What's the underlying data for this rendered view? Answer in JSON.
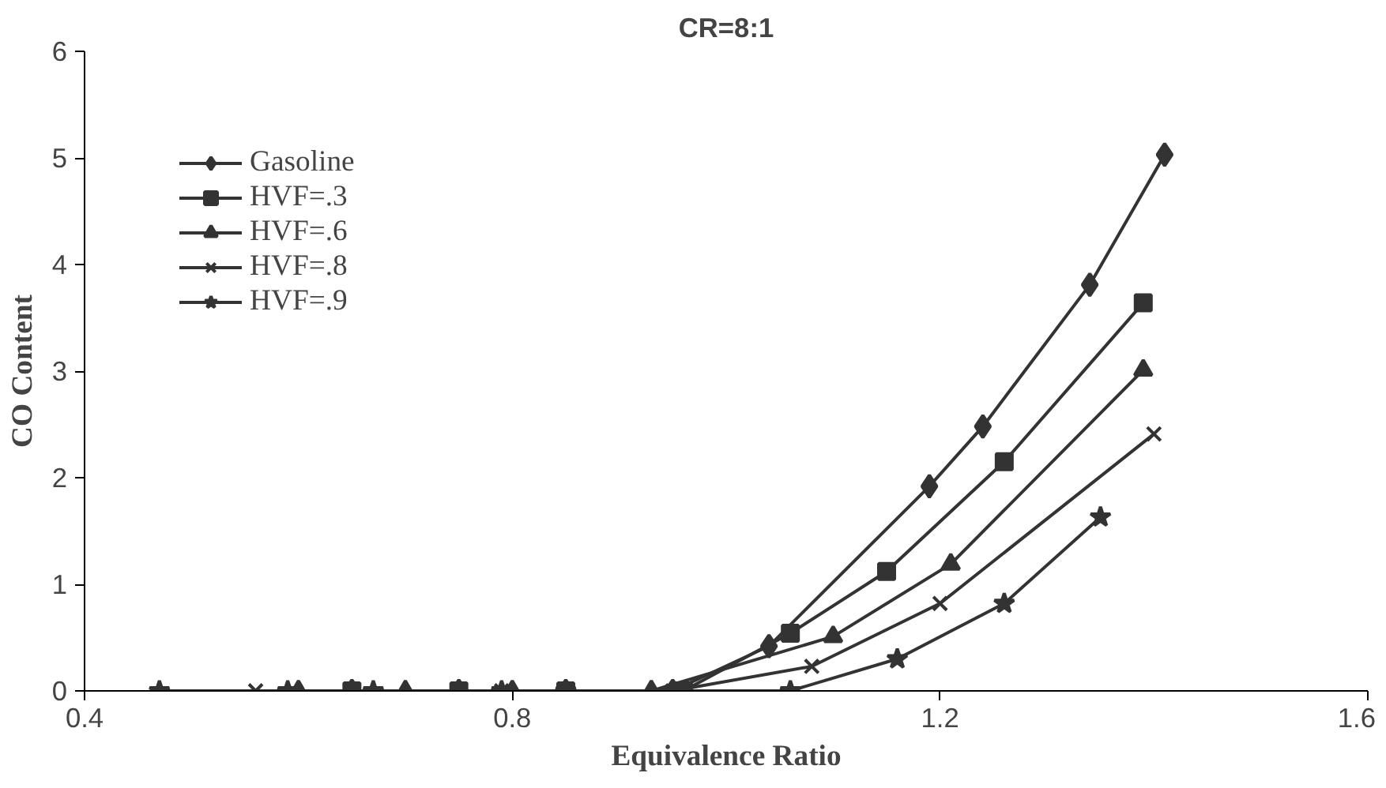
{
  "chart_data": {
    "type": "line",
    "title": "CR=8:1",
    "xlabel": "Equivalence Ratio",
    "ylabel": "CO Content",
    "xlim": [
      0.4,
      1.6
    ],
    "ylim": [
      0,
      6
    ],
    "xticks": [
      0.4,
      0.8,
      1.2,
      1.6
    ],
    "yticks": [
      0,
      1,
      2,
      3,
      4,
      5,
      6
    ],
    "grid": false,
    "legend": "top left",
    "series": [
      {
        "name": "Gasoline",
        "color": "#333333",
        "marker": "diamond",
        "x": [
          0.65,
          0.75,
          0.85,
          0.95,
          1.04,
          1.19,
          1.24,
          1.34,
          1.41
        ],
        "values": [
          0,
          0,
          0,
          0,
          0.42,
          1.92,
          2.48,
          3.81,
          5.03
        ]
      },
      {
        "name": "HVF=.3",
        "color": "#333333",
        "marker": "square",
        "x": [
          0.65,
          0.75,
          0.85,
          0.96,
          1.06,
          1.15,
          1.26,
          1.39
        ],
        "values": [
          0,
          0,
          0,
          0,
          0.54,
          1.12,
          2.15,
          3.64
        ]
      },
      {
        "name": "HVF=.6",
        "color": "#333333",
        "marker": "triangle",
        "x": [
          0.6,
          0.7,
          0.8,
          0.93,
          1.1,
          1.21,
          1.39
        ],
        "values": [
          0,
          0,
          0,
          0,
          0.51,
          1.19,
          3.01
        ]
      },
      {
        "name": "HVF=.8",
        "color": "#333333",
        "marker": "cross",
        "x": [
          0.56,
          0.79,
          0.85,
          0.95,
          1.08,
          1.2,
          1.4
        ],
        "values": [
          0,
          0,
          0,
          0,
          0.23,
          0.82,
          2.41
        ]
      },
      {
        "name": "HVF=.9",
        "color": "#333333",
        "marker": "star",
        "x": [
          0.47,
          0.59,
          0.67,
          0.79,
          0.85,
          0.95,
          1.06,
          1.16,
          1.26,
          1.35
        ],
        "values": [
          0,
          0,
          0,
          0,
          0,
          0,
          0,
          0.3,
          0.82,
          1.63
        ]
      }
    ]
  }
}
